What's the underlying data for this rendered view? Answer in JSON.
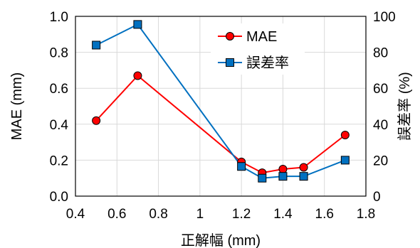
{
  "chart_data": {
    "type": "line",
    "xlabel": "正解幅 (mm)",
    "ylabel": "MAE (mm)",
    "y2label": "誤差率 (%)",
    "xlim": [
      0.4,
      1.8
    ],
    "xticks": [
      "0.4",
      "0.6",
      "0.8",
      "1",
      "1.2",
      "1.4",
      "1.6",
      "1.8"
    ],
    "ylim": [
      0.0,
      1.0
    ],
    "yticks": [
      "0.0",
      "0.2",
      "0.4",
      "0.6",
      "0.8",
      "1.0"
    ],
    "y2lim": [
      0,
      100
    ],
    "y2ticks": [
      "0",
      "20",
      "40",
      "60",
      "80",
      "100"
    ],
    "grid": true,
    "legend_position": "top-right",
    "series": [
      {
        "name": "MAE",
        "axis": "left",
        "color": "#ff0000",
        "marker": "circle",
        "x": [
          0.5,
          0.7,
          1.2,
          1.3,
          1.4,
          1.5,
          1.7
        ],
        "y": [
          0.42,
          0.67,
          0.19,
          0.13,
          0.15,
          0.16,
          0.34
        ]
      },
      {
        "name": "誤差率",
        "axis": "right",
        "color": "#0070c0",
        "marker": "square",
        "x": [
          0.5,
          0.7,
          1.2,
          1.3,
          1.4,
          1.5,
          1.7
        ],
        "y": [
          84,
          95.5,
          16.5,
          10,
          11,
          11,
          20
        ]
      }
    ]
  }
}
